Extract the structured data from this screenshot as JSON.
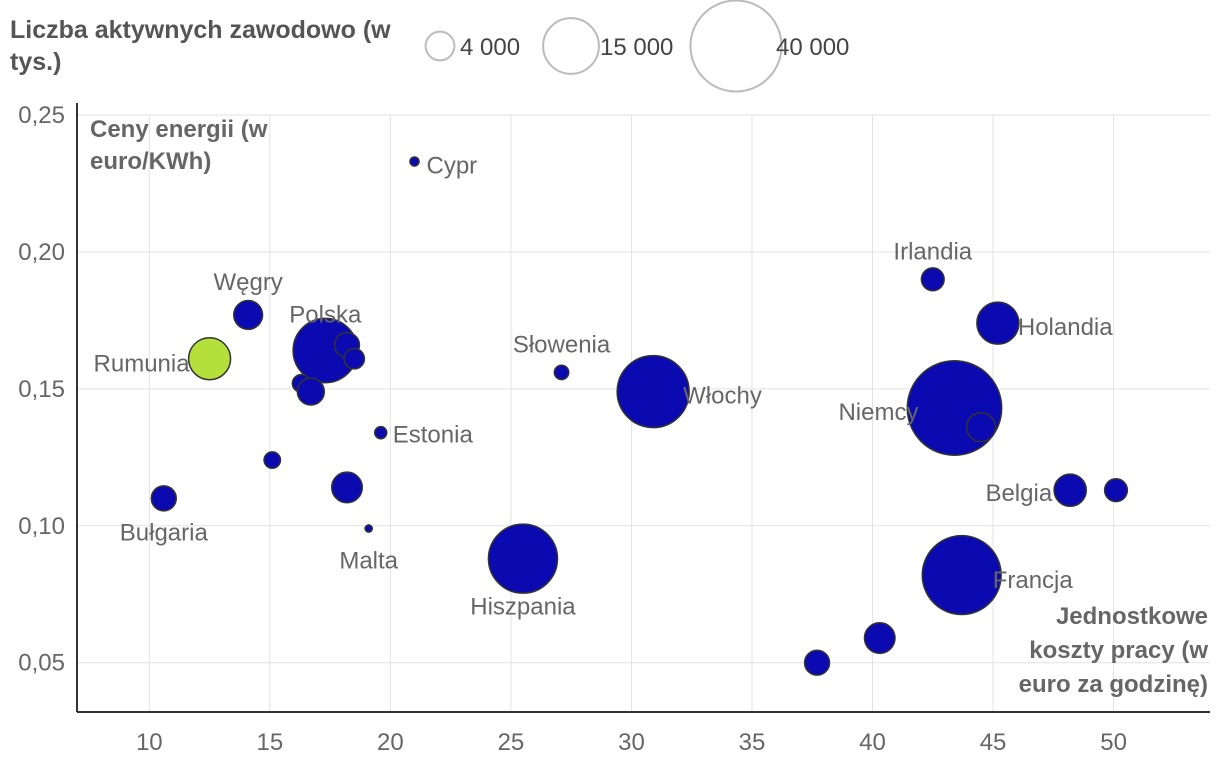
{
  "chart_data": {
    "type": "scatter",
    "legend": {
      "title": "Liczba aktywnych zawodowo (w tys.)",
      "sizes": [
        {
          "label": "4 000",
          "value": 4000
        },
        {
          "label": "15 000",
          "value": 15000
        },
        {
          "label": "40 000",
          "value": 40000
        }
      ],
      "placement": "top-left"
    },
    "xlabel": "Jednostkowe koszty pracy (w euro za godzinę)",
    "ylabel": "Ceny energii (w euro/KWh)",
    "xlim": [
      7,
      54
    ],
    "ylim": [
      0.032,
      0.25
    ],
    "xticks": [
      "10",
      "15",
      "20",
      "25",
      "30",
      "35",
      "40",
      "45",
      "50"
    ],
    "yticks": [
      "0,05",
      "0,10",
      "0,15",
      "0,20",
      "0,25"
    ],
    "grid": true,
    "colors": {
      "default": "#0a0ab0",
      "highlight": "#b5e03c",
      "outline": "#333333"
    },
    "points": [
      {
        "x": 21.0,
        "y": 0.233,
        "size": 400,
        "label": "Cypr"
      },
      {
        "x": 14.1,
        "y": 0.177,
        "size": 4000,
        "label": "Węgry"
      },
      {
        "x": 17.3,
        "y": 0.164,
        "size": 20000,
        "label": "Polska"
      },
      {
        "x": 12.5,
        "y": 0.161,
        "size": 8500,
        "label": "Rumunia",
        "highlight": true
      },
      {
        "x": 18.2,
        "y": 0.166,
        "size": 3000,
        "label": ""
      },
      {
        "x": 18.5,
        "y": 0.161,
        "size": 2000,
        "label": ""
      },
      {
        "x": 16.3,
        "y": 0.152,
        "size": 1500,
        "label": ""
      },
      {
        "x": 16.7,
        "y": 0.149,
        "size": 3500,
        "label": ""
      },
      {
        "x": 27.1,
        "y": 0.156,
        "size": 1000,
        "label": "Słowenia"
      },
      {
        "x": 30.9,
        "y": 0.149,
        "size": 25000,
        "label": "Włochy"
      },
      {
        "x": 19.6,
        "y": 0.134,
        "size": 700,
        "label": "Estonia"
      },
      {
        "x": 15.1,
        "y": 0.124,
        "size": 1300,
        "label": ""
      },
      {
        "x": 18.2,
        "y": 0.114,
        "size": 4500,
        "label": ""
      },
      {
        "x": 10.6,
        "y": 0.11,
        "size": 3000,
        "label": "Bułgaria"
      },
      {
        "x": 19.1,
        "y": 0.099,
        "size": 250,
        "label": "Malta"
      },
      {
        "x": 25.5,
        "y": 0.088,
        "size": 23000,
        "label": "Hiszpania"
      },
      {
        "x": 42.5,
        "y": 0.19,
        "size": 2500,
        "label": "Irlandia"
      },
      {
        "x": 45.2,
        "y": 0.174,
        "size": 8500,
        "label": "Holandia"
      },
      {
        "x": 43.4,
        "y": 0.143,
        "size": 43000,
        "label": "Niemcy"
      },
      {
        "x": 44.5,
        "y": 0.136,
        "size": 4000,
        "label": ""
      },
      {
        "x": 48.2,
        "y": 0.113,
        "size": 5000,
        "label": "Belgia"
      },
      {
        "x": 50.1,
        "y": 0.113,
        "size": 2500,
        "label": ""
      },
      {
        "x": 43.7,
        "y": 0.082,
        "size": 30000,
        "label": "Francja"
      },
      {
        "x": 40.3,
        "y": 0.059,
        "size": 4500,
        "label": ""
      },
      {
        "x": 37.7,
        "y": 0.05,
        "size": 3000,
        "label": ""
      }
    ]
  }
}
